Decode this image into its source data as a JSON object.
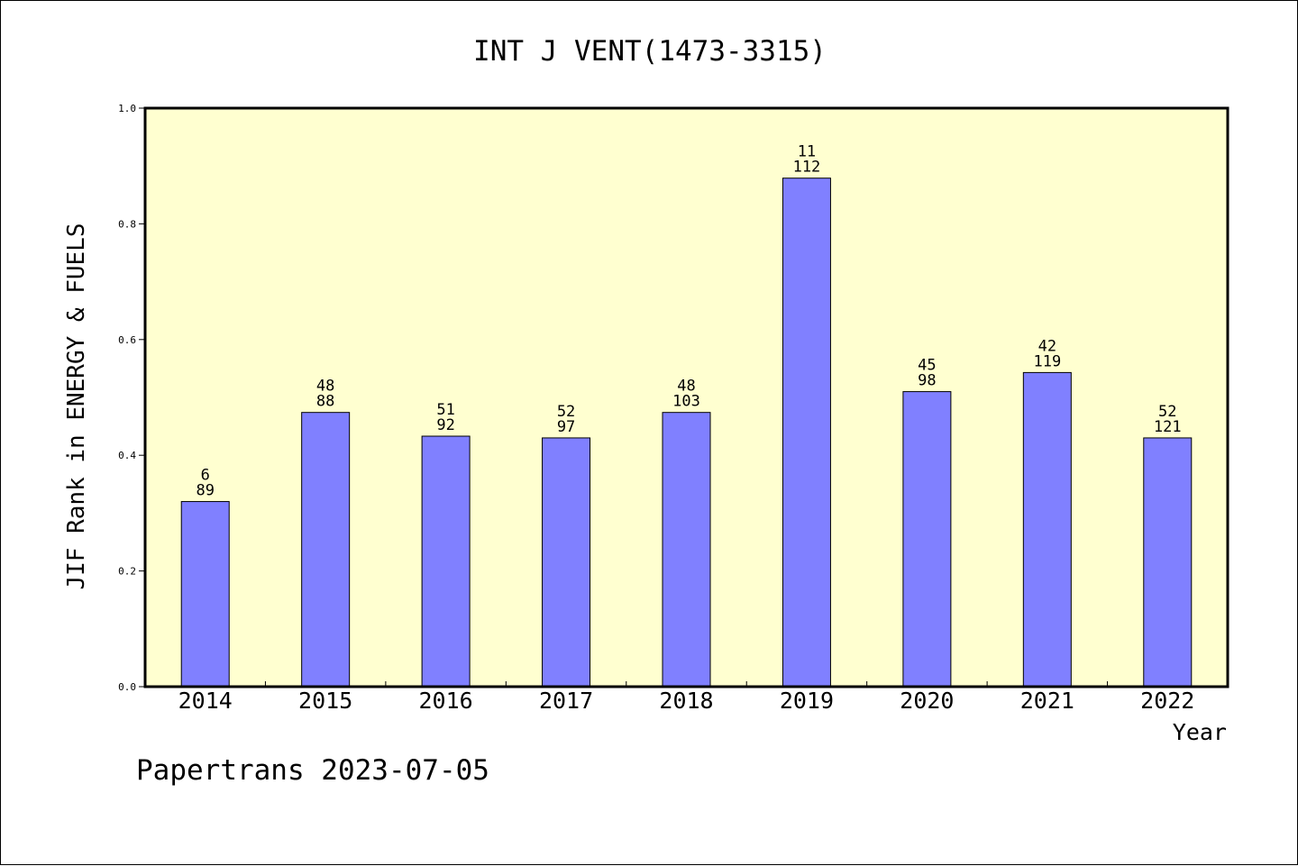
{
  "chart_data": {
    "type": "bar",
    "title": "INT J VENT(1473-3315)",
    "xlabel": "Year",
    "ylabel": "JIF Rank in ENERGY & FUELS",
    "ylim": [
      0,
      1.0
    ],
    "yticks": [
      "0.0",
      "0.2",
      "0.4",
      "0.6",
      "0.8",
      "1.0"
    ],
    "grid": false,
    "categories": [
      "2014",
      "2015",
      "2016",
      "2017",
      "2018",
      "2019",
      "2020",
      "2021",
      "2022"
    ],
    "values": [
      0.32,
      0.474,
      0.433,
      0.43,
      0.474,
      0.879,
      0.51,
      0.543,
      0.43
    ],
    "rank_labels": [
      "6",
      "48",
      "51",
      "52",
      "48",
      "11",
      "45",
      "42",
      "52"
    ],
    "total_labels": [
      "89",
      "88",
      "92",
      "97",
      "103",
      "112",
      "98",
      "119",
      "121"
    ],
    "colors": {
      "plot_background": "#ffffd0",
      "bar_fill": "#8080ff",
      "bar_stroke": "#000000"
    }
  },
  "footer": "Papertrans 2023-07-05"
}
